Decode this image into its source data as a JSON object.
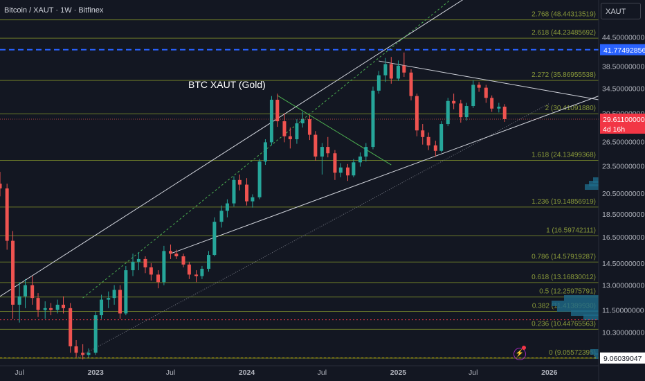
{
  "header": {
    "title": "Bitcoin / XAUT · 1W · Bitfinex",
    "symbol": "XAUT"
  },
  "annotation": "BTC XAUT (Gold)",
  "price_axis": {
    "ticks": [
      "44.50000000",
      "38.50000000",
      "34.50000000",
      "30.50000000",
      "26.50000000",
      "23.50000000",
      "20.50000000",
      "18.50000000",
      "16.50000000",
      "14.50000000",
      "13.00000000",
      "11.50000000",
      "10.30000000"
    ],
    "blue_line_label": "41.77492856",
    "current_price": "29.61100000",
    "countdown": "4d 16h",
    "low_line_label": "9.06039047"
  },
  "time_axis": {
    "labels": [
      "Jul",
      "2023",
      "Jul",
      "2024",
      "Jul",
      "2025",
      "Jul",
      "2026"
    ]
  },
  "fib_levels": [
    {
      "label": "2.768 (48.44313519)",
      "value": 48.44313519
    },
    {
      "label": "2.618 (44.23485692)",
      "value": 44.23485692
    },
    {
      "label": "2.272 (35.86955538)",
      "value": 35.86955538
    },
    {
      "label": "2 (30.41091880)",
      "value": 30.4109188
    },
    {
      "label": "1.618 (24.13499368)",
      "value": 24.13499368
    },
    {
      "label": "1.236 (19.14856919)",
      "value": 19.14856919
    },
    {
      "label": "1 (16.59742111)",
      "value": 16.59742111
    },
    {
      "label": "0.786 (14.57919287)",
      "value": 14.57919287
    },
    {
      "label": "0.618 (13.16830012)",
      "value": 13.16830012
    },
    {
      "label": "0.5 (12.25975791)",
      "value": 12.25975791
    },
    {
      "label": "0.382 (11.41389930)",
      "value": 11.4138993
    },
    {
      "label": "0.236 (10.44765563)",
      "value": 10.44765563
    },
    {
      "label": "0 (9.05572395)",
      "value": 9.05572395
    }
  ],
  "colors": {
    "background": "#131722",
    "up": "#26a69a",
    "down": "#ef5350",
    "fib": "#6b7a2a",
    "fib_text": "#8a9a3a",
    "blue_line": "#2962ff",
    "red_line": "#f23645",
    "current_price_bg": "#f23645",
    "low_line": "#c8b400"
  },
  "chart_data": {
    "type": "candlestick",
    "scale": "log",
    "ylim": [
      8.9,
      52
    ],
    "x_range": [
      "2022-05-15",
      "2026-04-30"
    ],
    "candles": [
      {
        "date": "2022-05-15",
        "open": 21.5,
        "high": 22.8,
        "low": 20.2,
        "close": 21.0
      },
      {
        "date": "2022-06-01",
        "open": 21.0,
        "high": 21.5,
        "low": 15.5,
        "close": 16.2
      },
      {
        "date": "2022-06-15",
        "open": 16.2,
        "high": 17.0,
        "low": 11.0,
        "close": 11.8
      },
      {
        "date": "2022-07-01",
        "open": 11.8,
        "high": 13.2,
        "low": 10.8,
        "close": 12.3
      },
      {
        "date": "2022-07-15",
        "open": 12.3,
        "high": 13.4,
        "low": 11.6,
        "close": 13.0
      },
      {
        "date": "2022-08-01",
        "open": 13.0,
        "high": 13.6,
        "low": 11.8,
        "close": 12.2
      },
      {
        "date": "2022-08-15",
        "open": 12.2,
        "high": 12.5,
        "low": 11.1,
        "close": 11.5
      },
      {
        "date": "2022-09-01",
        "open": 11.5,
        "high": 12.0,
        "low": 11.0,
        "close": 11.6
      },
      {
        "date": "2022-09-15",
        "open": 11.6,
        "high": 11.9,
        "low": 11.2,
        "close": 11.5
      },
      {
        "date": "2022-10-01",
        "open": 11.5,
        "high": 12.1,
        "low": 11.3,
        "close": 11.8
      },
      {
        "date": "2022-10-15",
        "open": 11.8,
        "high": 12.3,
        "low": 11.3,
        "close": 11.6
      },
      {
        "date": "2022-11-01",
        "open": 11.6,
        "high": 11.9,
        "low": 9.3,
        "close": 9.6
      },
      {
        "date": "2022-11-15",
        "open": 9.6,
        "high": 9.9,
        "low": 9.1,
        "close": 9.3
      },
      {
        "date": "2022-12-01",
        "open": 9.3,
        "high": 9.7,
        "low": 9.0,
        "close": 9.2
      },
      {
        "date": "2022-12-15",
        "open": 9.2,
        "high": 9.5,
        "low": 9.06,
        "close": 9.3
      },
      {
        "date": "2023-01-01",
        "open": 9.3,
        "high": 11.4,
        "low": 9.2,
        "close": 11.2
      },
      {
        "date": "2023-01-15",
        "open": 11.2,
        "high": 12.4,
        "low": 11.0,
        "close": 12.1
      },
      {
        "date": "2023-02-01",
        "open": 12.1,
        "high": 12.6,
        "low": 11.6,
        "close": 12.2
      },
      {
        "date": "2023-02-15",
        "open": 12.2,
        "high": 13.0,
        "low": 11.8,
        "close": 12.7
      },
      {
        "date": "2023-03-01",
        "open": 12.7,
        "high": 13.0,
        "low": 11.0,
        "close": 11.3
      },
      {
        "date": "2023-03-15",
        "open": 11.3,
        "high": 14.3,
        "low": 11.2,
        "close": 14.0
      },
      {
        "date": "2023-04-01",
        "open": 14.0,
        "high": 15.2,
        "low": 13.6,
        "close": 14.6
      },
      {
        "date": "2023-04-15",
        "open": 14.6,
        "high": 15.3,
        "low": 14.0,
        "close": 14.8
      },
      {
        "date": "2023-05-01",
        "open": 14.8,
        "high": 15.0,
        "low": 13.8,
        "close": 14.2
      },
      {
        "date": "2023-05-15",
        "open": 14.2,
        "high": 14.5,
        "low": 13.3,
        "close": 13.7
      },
      {
        "date": "2023-06-01",
        "open": 13.7,
        "high": 14.0,
        "low": 12.8,
        "close": 13.2
      },
      {
        "date": "2023-06-15",
        "open": 13.2,
        "high": 15.8,
        "low": 13.0,
        "close": 15.4
      },
      {
        "date": "2023-07-01",
        "open": 15.4,
        "high": 15.9,
        "low": 14.8,
        "close": 15.2
      },
      {
        "date": "2023-07-15",
        "open": 15.2,
        "high": 15.5,
        "low": 14.8,
        "close": 15.0
      },
      {
        "date": "2023-08-01",
        "open": 15.0,
        "high": 15.2,
        "low": 14.2,
        "close": 14.4
      },
      {
        "date": "2023-08-15",
        "open": 14.4,
        "high": 14.6,
        "low": 13.4,
        "close": 13.7
      },
      {
        "date": "2023-09-01",
        "open": 13.7,
        "high": 14.0,
        "low": 13.2,
        "close": 13.6
      },
      {
        "date": "2023-09-15",
        "open": 13.6,
        "high": 14.3,
        "low": 13.4,
        "close": 14.1
      },
      {
        "date": "2023-10-01",
        "open": 14.1,
        "high": 15.4,
        "low": 13.9,
        "close": 15.1
      },
      {
        "date": "2023-10-15",
        "open": 15.1,
        "high": 18.2,
        "low": 15.0,
        "close": 17.8
      },
      {
        "date": "2023-11-01",
        "open": 17.8,
        "high": 19.3,
        "low": 17.3,
        "close": 18.8
      },
      {
        "date": "2023-11-15",
        "open": 18.8,
        "high": 19.9,
        "low": 18.2,
        "close": 19.5
      },
      {
        "date": "2023-12-01",
        "open": 19.5,
        "high": 22.3,
        "low": 19.2,
        "close": 21.9
      },
      {
        "date": "2023-12-15",
        "open": 21.9,
        "high": 22.5,
        "low": 20.8,
        "close": 21.4
      },
      {
        "date": "2024-01-01",
        "open": 21.4,
        "high": 22.1,
        "low": 19.3,
        "close": 19.7
      },
      {
        "date": "2024-01-15",
        "open": 19.7,
        "high": 20.4,
        "low": 19.1,
        "close": 20.1
      },
      {
        "date": "2024-02-01",
        "open": 20.1,
        "high": 24.3,
        "low": 19.9,
        "close": 24.0
      },
      {
        "date": "2024-02-15",
        "open": 24.0,
        "high": 26.8,
        "low": 23.6,
        "close": 26.4
      },
      {
        "date": "2024-03-01",
        "open": 26.4,
        "high": 33.2,
        "low": 26.0,
        "close": 32.6
      },
      {
        "date": "2024-03-15",
        "open": 32.6,
        "high": 33.6,
        "low": 28.5,
        "close": 29.3
      },
      {
        "date": "2024-04-01",
        "open": 29.3,
        "high": 30.5,
        "low": 26.4,
        "close": 27.2
      },
      {
        "date": "2024-04-15",
        "open": 27.2,
        "high": 28.4,
        "low": 25.6,
        "close": 26.8
      },
      {
        "date": "2024-05-01",
        "open": 26.8,
        "high": 29.6,
        "low": 26.2,
        "close": 29.0
      },
      {
        "date": "2024-05-15",
        "open": 29.0,
        "high": 30.7,
        "low": 28.4,
        "close": 29.6
      },
      {
        "date": "2024-06-01",
        "open": 29.6,
        "high": 30.2,
        "low": 26.7,
        "close": 27.4
      },
      {
        "date": "2024-06-15",
        "open": 27.4,
        "high": 27.9,
        "low": 24.1,
        "close": 24.6
      },
      {
        "date": "2024-07-01",
        "open": 24.6,
        "high": 26.3,
        "low": 22.5,
        "close": 25.8
      },
      {
        "date": "2024-07-15",
        "open": 25.8,
        "high": 27.1,
        "low": 24.5,
        "close": 25.0
      },
      {
        "date": "2024-08-01",
        "open": 25.0,
        "high": 25.4,
        "low": 21.9,
        "close": 22.7
      },
      {
        "date": "2024-08-15",
        "open": 22.7,
        "high": 23.8,
        "low": 22.2,
        "close": 23.3
      },
      {
        "date": "2024-09-01",
        "open": 23.3,
        "high": 23.7,
        "low": 21.8,
        "close": 22.4
      },
      {
        "date": "2024-09-15",
        "open": 22.4,
        "high": 24.3,
        "low": 22.2,
        "close": 23.9
      },
      {
        "date": "2024-10-01",
        "open": 23.9,
        "high": 25.1,
        "low": 23.4,
        "close": 24.6
      },
      {
        "date": "2024-10-15",
        "open": 24.6,
        "high": 26.3,
        "low": 24.0,
        "close": 25.8
      },
      {
        "date": "2024-11-01",
        "open": 25.8,
        "high": 34.8,
        "low": 25.5,
        "close": 34.1
      },
      {
        "date": "2024-11-15",
        "open": 34.1,
        "high": 37.6,
        "low": 33.6,
        "close": 36.8
      },
      {
        "date": "2024-12-01",
        "open": 36.8,
        "high": 40.1,
        "low": 35.6,
        "close": 38.9
      },
      {
        "date": "2024-12-15",
        "open": 38.9,
        "high": 40.3,
        "low": 35.3,
        "close": 36.2
      },
      {
        "date": "2025-01-01",
        "open": 36.2,
        "high": 39.6,
        "low": 35.8,
        "close": 38.6
      },
      {
        "date": "2025-01-15",
        "open": 38.6,
        "high": 41.2,
        "low": 36.5,
        "close": 37.3
      },
      {
        "date": "2025-02-01",
        "open": 37.3,
        "high": 37.9,
        "low": 32.5,
        "close": 33.2
      },
      {
        "date": "2025-02-15",
        "open": 33.2,
        "high": 33.6,
        "low": 27.2,
        "close": 28.0
      },
      {
        "date": "2025-03-01",
        "open": 28.0,
        "high": 28.9,
        "low": 26.1,
        "close": 27.1
      },
      {
        "date": "2025-03-15",
        "open": 27.1,
        "high": 27.7,
        "low": 25.4,
        "close": 26.0
      },
      {
        "date": "2025-04-01",
        "open": 26.0,
        "high": 26.6,
        "low": 24.6,
        "close": 25.3
      },
      {
        "date": "2025-04-15",
        "open": 25.3,
        "high": 29.3,
        "low": 25.1,
        "close": 28.9
      },
      {
        "date": "2025-05-01",
        "open": 28.9,
        "high": 32.9,
        "low": 28.6,
        "close": 32.4
      },
      {
        "date": "2025-05-15",
        "open": 32.4,
        "high": 33.6,
        "low": 31.1,
        "close": 32.0
      },
      {
        "date": "2025-06-01",
        "open": 32.0,
        "high": 32.6,
        "low": 29.1,
        "close": 29.9
      },
      {
        "date": "2025-06-15",
        "open": 29.9,
        "high": 32.1,
        "low": 29.4,
        "close": 31.6
      },
      {
        "date": "2025-07-01",
        "open": 31.6,
        "high": 35.9,
        "low": 31.3,
        "close": 35.1
      },
      {
        "date": "2025-07-15",
        "open": 35.1,
        "high": 35.6,
        "low": 33.9,
        "close": 34.6
      },
      {
        "date": "2025-08-01",
        "open": 34.6,
        "high": 35.1,
        "low": 32.1,
        "close": 32.9
      },
      {
        "date": "2025-08-15",
        "open": 32.9,
        "high": 33.3,
        "low": 30.7,
        "close": 31.2
      },
      {
        "date": "2025-09-01",
        "open": 31.2,
        "high": 32.1,
        "low": 30.6,
        "close": 31.5
      },
      {
        "date": "2025-09-15",
        "open": 31.5,
        "high": 31.9,
        "low": 29.2,
        "close": 29.61
      }
    ]
  }
}
